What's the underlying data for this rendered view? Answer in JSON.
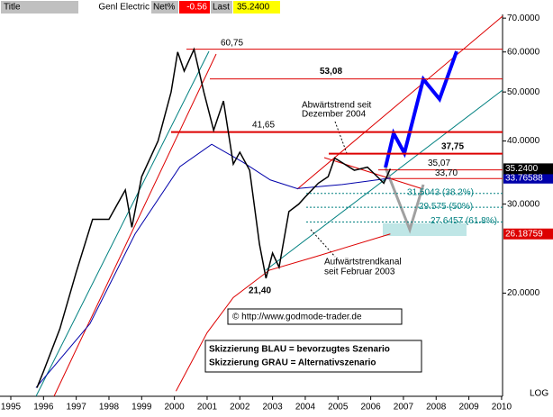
{
  "header": {
    "title_label": "Title",
    "name": "Genl Electric",
    "net_label": "Net%",
    "net": -0.56,
    "last_label": "Last",
    "last": "35.2400"
  },
  "chart_data": {
    "type": "line",
    "log_scale": true,
    "grid": false,
    "xlim": [
      1994.67,
      2010.03
    ],
    "ylim": [
      12.5,
      71.2
    ],
    "xticks": [
      1995,
      1996,
      1997,
      1998,
      1999,
      2000,
      2001,
      2002,
      2003,
      2004,
      2005,
      2006,
      2007,
      2008,
      2009,
      2010
    ],
    "yticks": [
      {
        "value": 70,
        "label": "70.0000"
      },
      {
        "value": 60,
        "label": "60.0000"
      },
      {
        "value": 50,
        "label": "50.0000"
      },
      {
        "value": 40,
        "label": "40.0000"
      },
      {
        "value": 30,
        "label": "30.0000"
      },
      {
        "value": 20,
        "label": "20.0000"
      }
    ],
    "series": [
      {
        "color": "#000000",
        "last_label": "35.2400",
        "x": [
          1995.8,
          1996.0,
          1996.5,
          1997.0,
          1997.5,
          1998.0,
          1998.5,
          1998.7,
          1999.0,
          1999.5,
          1999.9,
          2000.1,
          2000.3,
          2000.6,
          2000.9,
          2001.2,
          2001.5,
          2001.8,
          2002.0,
          2002.3,
          2002.6,
          2002.8,
          2003.0,
          2003.2,
          2003.5,
          2003.8,
          2004.0,
          2004.4,
          2004.7,
          2004.9,
          2005.2,
          2005.5,
          2005.9,
          2006.2,
          2006.4,
          2006.6
        ],
        "values": [
          13,
          14,
          17,
          22,
          28,
          28,
          32,
          27,
          34,
          40,
          50,
          60,
          55,
          60.75,
          50,
          42,
          48,
          36,
          38,
          35,
          25,
          21.4,
          24,
          22.5,
          29,
          30,
          31,
          33,
          34,
          37,
          36,
          35,
          35.5,
          34,
          33,
          35.24
        ]
      },
      {
        "color": "#0000aa",
        "last_label": "33.76588",
        "x": [
          1995.77,
          1997.42,
          1998.8,
          2000.17,
          2001.14,
          2002.1,
          2002.93,
          2003.75,
          2005.13,
          2006.6
        ],
        "values": [
          13,
          17.4,
          26.2,
          35.6,
          39.4,
          36.3,
          33.5,
          32.2,
          32.8,
          33.77
        ]
      },
      {
        "color": "#dd0000",
        "last_label": "26.18759",
        "x": [
          2000.05,
          2001.0,
          2001.8,
          2002.9,
          2004.3,
          2006.6
        ],
        "values": [
          12.8,
          16.7,
          19.6,
          22.2,
          23.6,
          26.19
        ]
      }
    ],
    "levels": [
      {
        "value": 60.75,
        "label": "60,75"
      },
      {
        "value": 53.08,
        "label": "53,08"
      },
      {
        "value": 41.65,
        "label": "41,65"
      },
      {
        "value": 37.75,
        "label": "37,75"
      },
      {
        "value": 35.07,
        "label": "35,07"
      },
      {
        "value": 33.7,
        "label": "33,70"
      }
    ],
    "fib_levels": [
      {
        "value": 31.5043,
        "label": "31.5043 (38.2%)"
      },
      {
        "value": 29.575,
        "label": "29.575 (50%)"
      },
      {
        "value": 27.6457,
        "label": "27.6457 (61.8%)"
      }
    ],
    "low": {
      "value": 21.4,
      "label": "21,40"
    },
    "annotations": [
      "Abwärtstrend seit",
      "Dezember 2004",
      "Aufwärtstrendkanal",
      "seit Februar 2003",
      "© http://www.godmode-trader.de",
      "Skizzierung BLAU = bevorzugtes Szenario",
      "Skizzierung GRAU = Alternativszenario"
    ],
    "scale_label": "LOG"
  }
}
